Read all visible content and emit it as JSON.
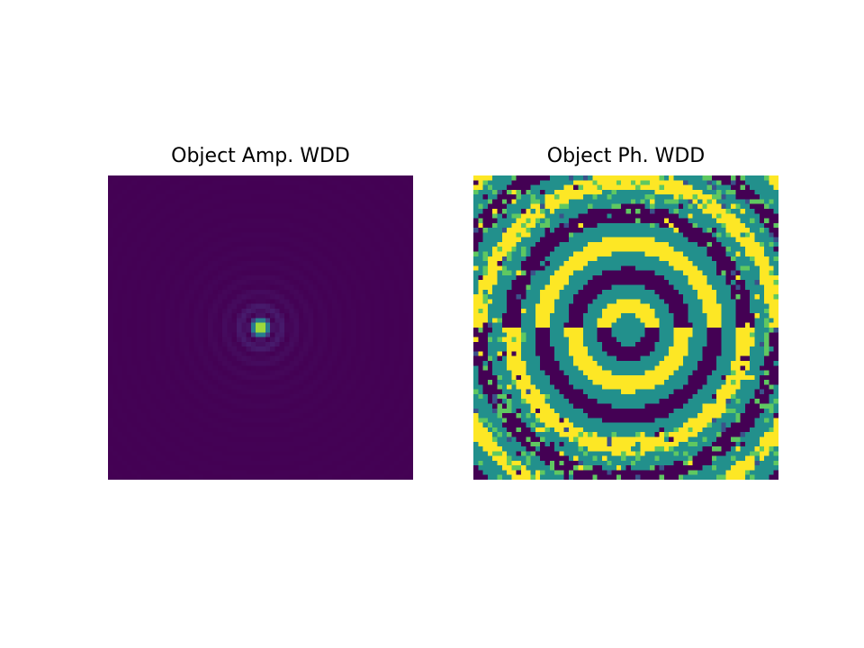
{
  "chart_data": [
    {
      "type": "heatmap",
      "title": "Object Amp. WDD",
      "xlabel": "",
      "ylabel": "",
      "axes": "off",
      "colormap": "viridis",
      "grid_size": [
        64,
        64
      ],
      "pattern": "bright central peak surrounded by faint concentric rings (Airy-like)",
      "value_range": [
        0,
        1
      ],
      "peak_value": 1,
      "background_value": 0
    },
    {
      "type": "heatmap",
      "title": "Object Ph. WDD",
      "xlabel": "",
      "ylabel": "",
      "axes": "off",
      "colormap": "viridis",
      "grid_size": [
        64,
        64
      ],
      "pattern": "wrapped phase with concentric rings; upper half and lower half in opposite phase; center value mid-range",
      "value_range": [
        -3.1416,
        3.1416
      ],
      "discrete_levels": [
        -3.1416,
        -1.5708,
        0,
        1.5708,
        3.1416
      ]
    }
  ],
  "colors": {
    "background": "#ffffff",
    "viridis_low": "#440154",
    "viridis_mid": "#21918c",
    "viridis_high": "#fde725"
  }
}
